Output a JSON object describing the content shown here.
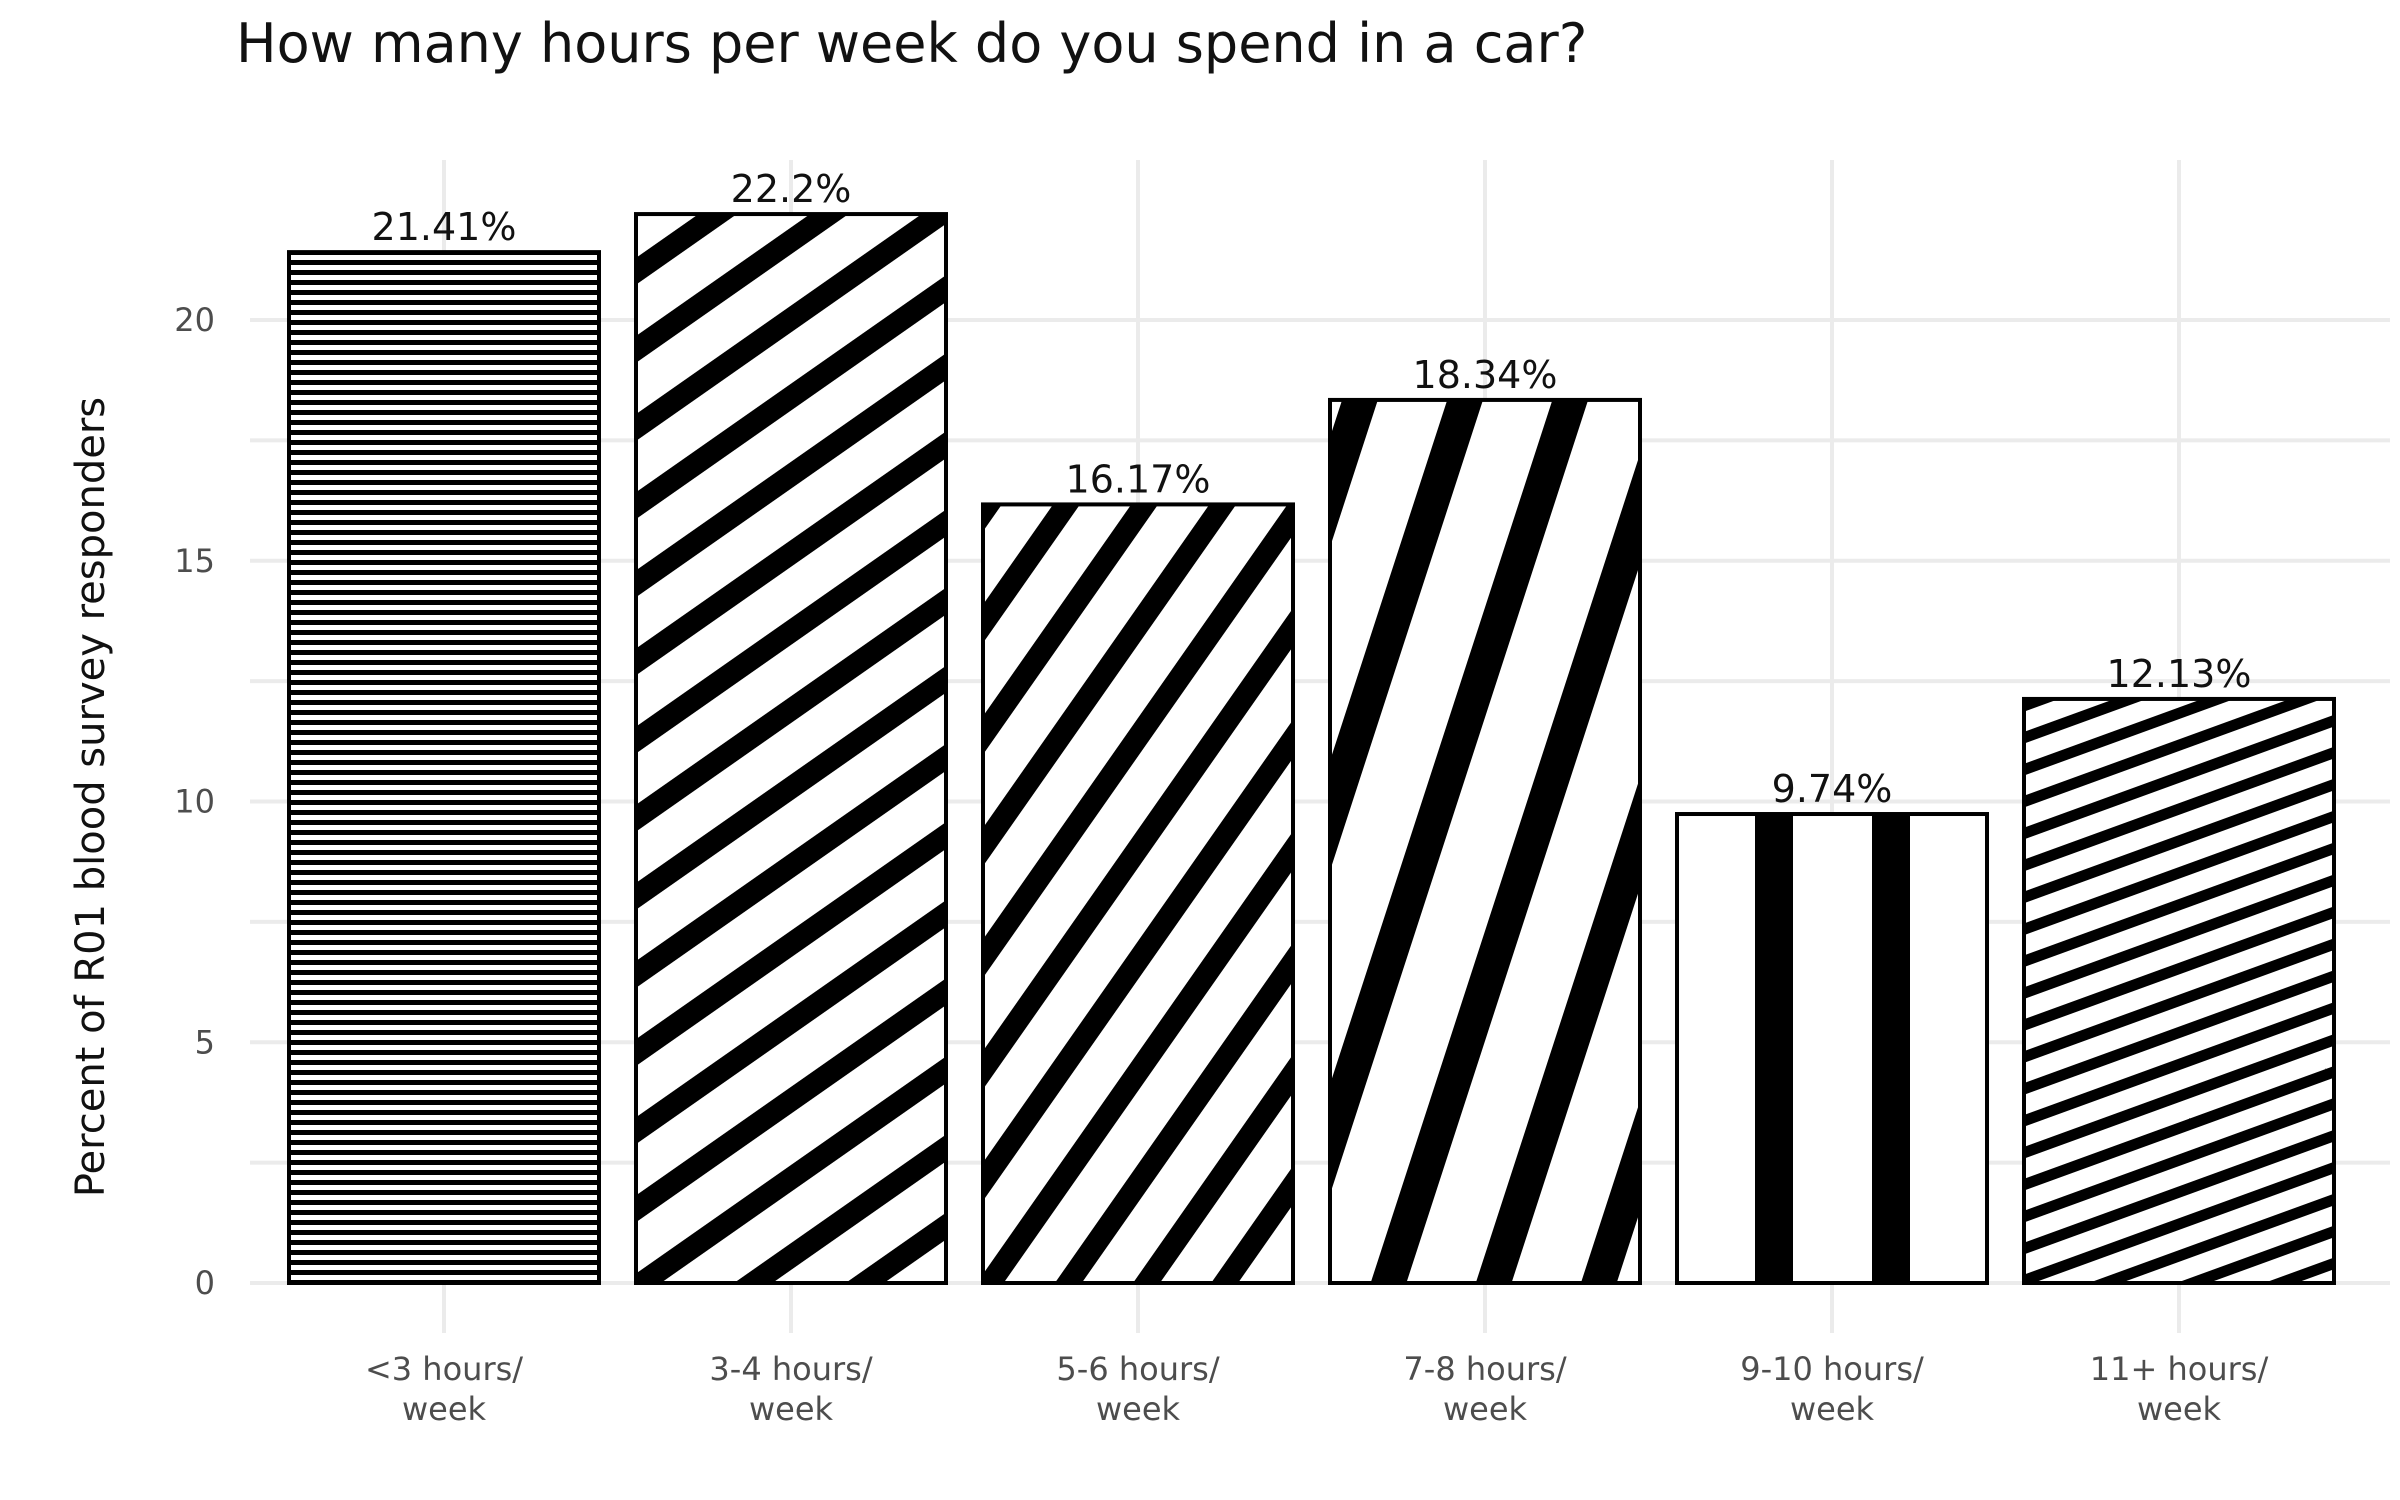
{
  "chart_data": {
    "type": "bar",
    "title": "How many hours per week do you spend in a car?",
    "xlabel": "",
    "ylabel": "Percent of R01 blood survey responders",
    "categories": [
      [
        "<3 hours/",
        "week"
      ],
      [
        "3-4 hours/",
        "week"
      ],
      [
        "5-6 hours/",
        "week"
      ],
      [
        "7-8 hours/",
        "week"
      ],
      [
        "9-10 hours/",
        "week"
      ],
      [
        "11+ hours/",
        "week"
      ]
    ],
    "values": [
      21.41,
      22.2,
      16.17,
      18.34,
      9.74,
      12.13
    ],
    "value_labels": [
      "21.41%",
      "22.2%",
      "16.17%",
      "18.34%",
      "9.74%",
      "12.13%"
    ],
    "patterns": [
      "horizontal-stripes",
      "diagonal-stripes-shallow",
      "diagonal-stripes-steep",
      "diagonal-stripes-very-steep",
      "vertical-stripes",
      "diagonal-stripes-very-shallow"
    ],
    "ylim": [
      0,
      23.5
    ],
    "yticks": [
      0,
      5,
      10,
      15,
      20
    ],
    "ytick_labels": [
      "0",
      "5",
      "10",
      "15",
      "20"
    ],
    "grid": true,
    "legend": "none",
    "colors": {
      "bar_fill": "#ffffff",
      "bar_pattern": "#000000",
      "bar_outline": "#000000",
      "grid": "#ebebeb",
      "tick_text": "#4d4d4d",
      "text": "#111111"
    }
  }
}
